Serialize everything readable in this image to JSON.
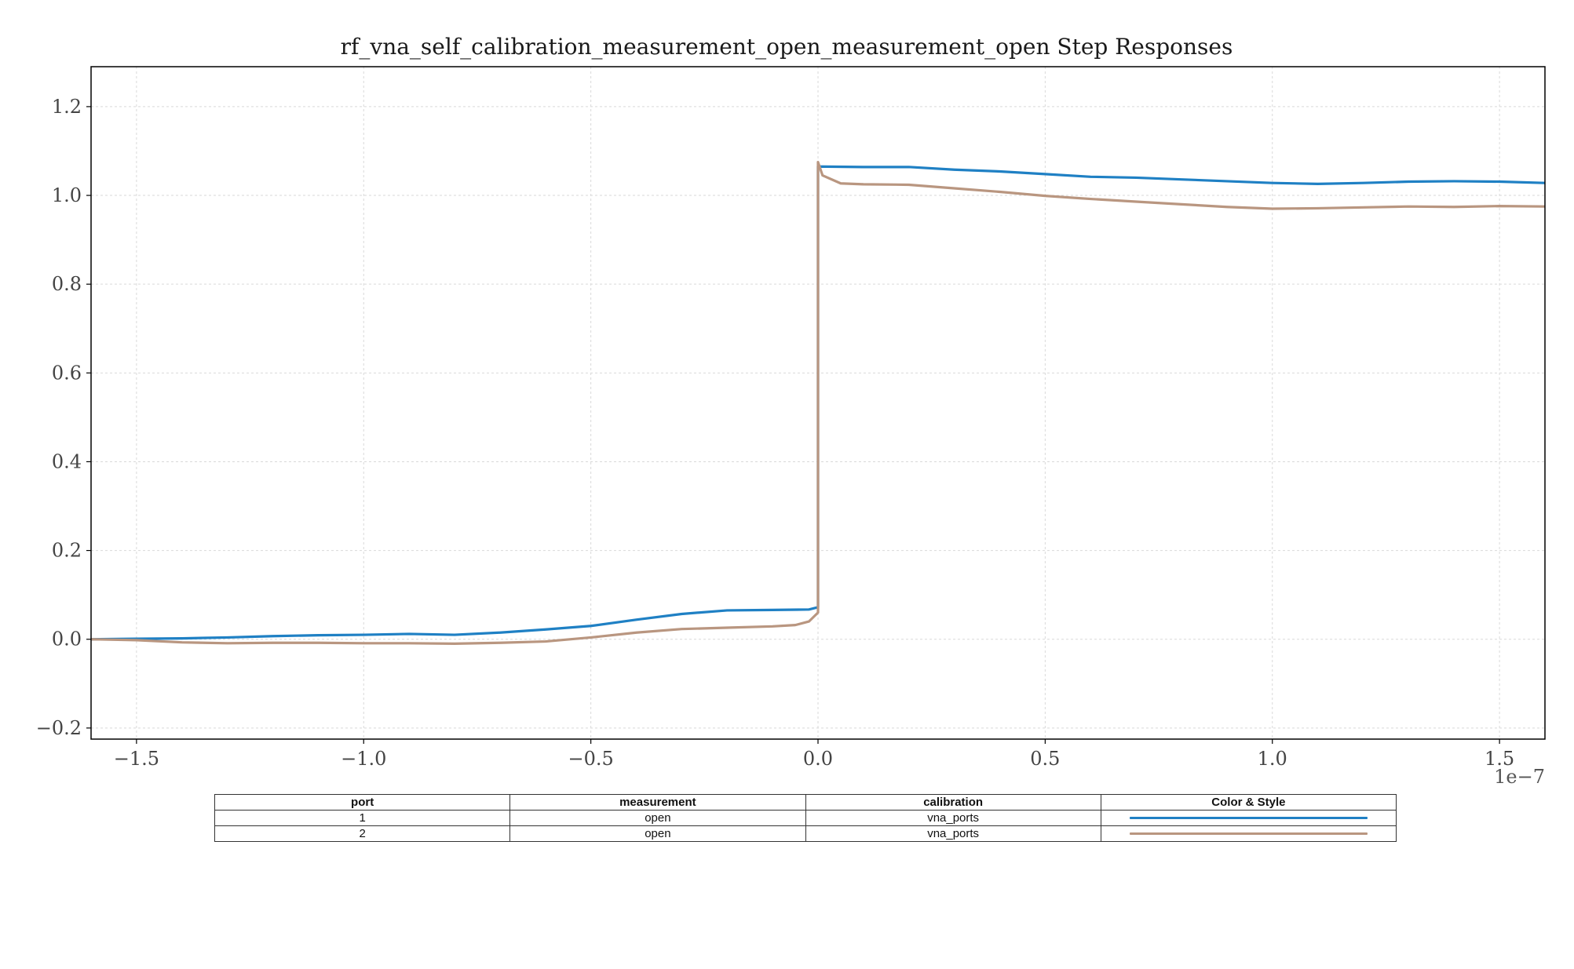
{
  "chart_data": {
    "type": "line",
    "title": "rf_vna_self_calibration_measurement_open_measurement_open Step Responses",
    "xlabel": "",
    "ylabel": "",
    "x_offset_label": "1e−7",
    "xlim": [
      -1.6,
      1.6
    ],
    "ylim": [
      -0.225,
      1.29
    ],
    "x_ticks": [
      -1.5,
      -1.0,
      -0.5,
      0.0,
      0.5,
      1.0,
      1.5
    ],
    "x_tick_labels": [
      "−1.5",
      "−1.0",
      "−0.5",
      "0.0",
      "0.5",
      "1.0",
      "1.5"
    ],
    "y_ticks": [
      -0.2,
      0.0,
      0.2,
      0.4,
      0.6,
      0.8,
      1.0,
      1.2
    ],
    "y_tick_labels": [
      "−0.2",
      "0.0",
      "0.2",
      "0.4",
      "0.6",
      "0.8",
      "1.0",
      "1.2"
    ],
    "grid": true,
    "legend_placement": "table below chart",
    "series": [
      {
        "color": "#1f80c4",
        "x": [
          -1.6,
          -1.5,
          -1.4,
          -1.3,
          -1.2,
          -1.1,
          -1.0,
          -0.9,
          -0.8,
          -0.7,
          -0.6,
          -0.5,
          -0.4,
          -0.3,
          -0.2,
          -0.1,
          -0.02,
          0.0,
          0.0,
          0.0,
          0.1,
          0.2,
          0.3,
          0.4,
          0.5,
          0.6,
          0.7,
          0.8,
          0.9,
          1.0,
          1.1,
          1.2,
          1.3,
          1.4,
          1.5,
          1.6
        ],
        "y": [
          0.0,
          0.001,
          0.002,
          0.004,
          0.007,
          0.009,
          0.01,
          0.012,
          0.01,
          0.015,
          0.022,
          0.03,
          0.044,
          0.057,
          0.065,
          0.066,
          0.067,
          0.072,
          0.5,
          1.065,
          1.064,
          1.064,
          1.058,
          1.054,
          1.048,
          1.042,
          1.04,
          1.036,
          1.032,
          1.028,
          1.026,
          1.028,
          1.031,
          1.032,
          1.031,
          1.028
        ]
      },
      {
        "color": "#b99680",
        "x": [
          -1.6,
          -1.5,
          -1.4,
          -1.3,
          -1.2,
          -1.1,
          -1.0,
          -0.9,
          -0.8,
          -0.7,
          -0.6,
          -0.5,
          -0.4,
          -0.3,
          -0.2,
          -0.1,
          -0.05,
          -0.02,
          0.0,
          0.0,
          0.01,
          0.05,
          0.1,
          0.2,
          0.3,
          0.4,
          0.5,
          0.6,
          0.7,
          0.8,
          0.9,
          1.0,
          1.1,
          1.2,
          1.3,
          1.4,
          1.5,
          1.6
        ],
        "y": [
          0.0,
          -0.002,
          -0.007,
          -0.009,
          -0.008,
          -0.008,
          -0.009,
          -0.009,
          -0.01,
          -0.008,
          -0.005,
          0.004,
          0.015,
          0.023,
          0.026,
          0.029,
          0.032,
          0.04,
          0.06,
          1.075,
          1.045,
          1.027,
          1.025,
          1.024,
          1.016,
          1.008,
          0.999,
          0.992,
          0.986,
          0.98,
          0.974,
          0.97,
          0.971,
          0.973,
          0.975,
          0.974,
          0.976,
          0.975
        ]
      }
    ]
  },
  "legend_table": {
    "headers": [
      "port",
      "measurement",
      "calibration",
      "Color & Style"
    ],
    "rows": [
      {
        "port": "1",
        "measurement": "open",
        "calibration": "vna_ports",
        "color": "#1f80c4"
      },
      {
        "port": "2",
        "measurement": "open",
        "calibration": "vna_ports",
        "color": "#b99680"
      }
    ]
  }
}
